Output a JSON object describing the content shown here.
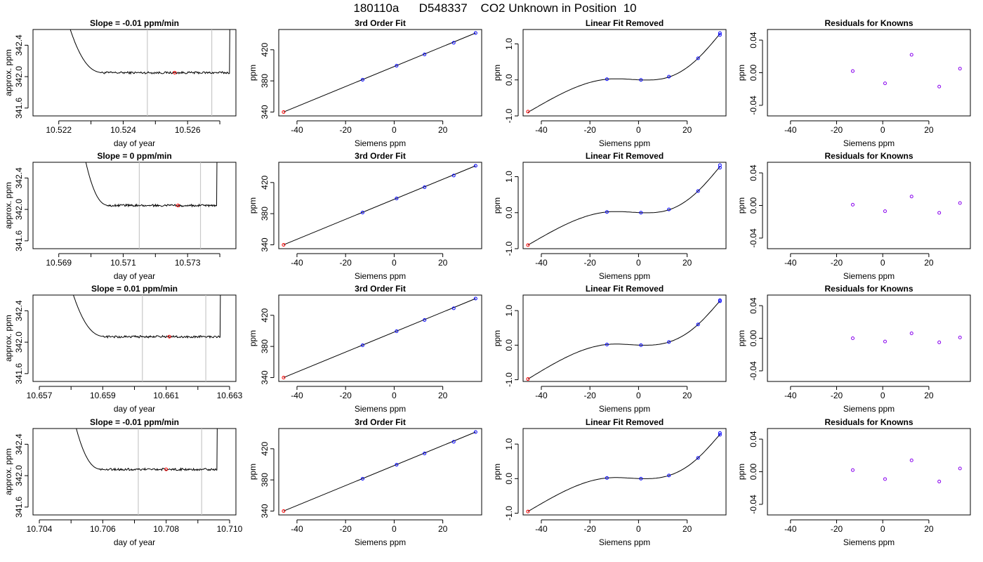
{
  "figure_title": "180110a      D548337    CO2 Unknown in Position  10",
  "colors": {
    "known_points": "#0000ff",
    "unknown_points": "#ff0000",
    "residual_points": "#8800ee",
    "vertical_lines": "#c8c8c8",
    "curve": "#000000"
  },
  "chart_data": [
    {
      "type": "line",
      "panel": "trace",
      "row": 1,
      "title": "Slope =  -0.01  ppm/min",
      "xlabel": "day of year",
      "ylabel": "approx. ppm",
      "xlim": [
        10.5212,
        10.5275
      ],
      "ylim": [
        341.5,
        342.6
      ],
      "xticks": [
        "10.522",
        "10.524",
        "10.526"
      ],
      "xtick_values": [
        10.522,
        10.524,
        10.526
      ],
      "minor_xticks": [
        10.523,
        10.525,
        10.527
      ],
      "yticks": [
        "341.6",
        "342.0",
        "342.4"
      ],
      "ytick_values": [
        341.6,
        342.0,
        342.4
      ],
      "x_start": 10.5223,
      "x_flat": 10.5233,
      "x_end": 10.5273,
      "flat_level": 342.05,
      "vlines": [
        10.52475,
        10.52675
      ],
      "marker": {
        "x": 10.5256,
        "y": 342.05
      }
    },
    {
      "type": "scatter",
      "panel": "fit",
      "row": 1,
      "title": "3rd Order Fit",
      "xlabel": "Siemens ppm",
      "ylabel": "ppm",
      "xlim": [
        -47.5,
        36
      ],
      "ylim": [
        335,
        446
      ],
      "xticks": [
        "-40",
        "-20",
        "0",
        "20"
      ],
      "xtick_values": [
        -40,
        -20,
        0,
        20
      ],
      "yticks": [
        "340",
        "380",
        "420"
      ],
      "ytick_values": [
        340,
        380,
        420
      ],
      "known": {
        "x": [
          -13,
          1,
          12.5,
          24.5,
          33.5
        ],
        "y": [
          381.5,
          399.5,
          414,
          429,
          441.5
        ]
      },
      "unknown": {
        "x": [
          -45.5
        ],
        "y": [
          340
        ]
      },
      "line": {
        "x": [
          -45.5,
          33.5
        ],
        "y": [
          340,
          441.5
        ]
      }
    },
    {
      "type": "line",
      "panel": "linear_removed",
      "row": 1,
      "title": "Linear Fit Removed",
      "xlabel": "Siemens ppm",
      "ylabel": "ppm",
      "xlim": [
        -47.5,
        36
      ],
      "ylim": [
        -1.0,
        1.4
      ],
      "xticks": [
        "-40",
        "-20",
        "0",
        "20"
      ],
      "xtick_values": [
        -40,
        -20,
        0,
        20
      ],
      "yticks": [
        "-1.0",
        "0.0",
        "1.0"
      ],
      "ytick_values": [
        -1.0,
        0.0,
        1.0
      ],
      "curve": {
        "x": [
          -45.5,
          -13,
          1,
          12.5,
          24.5,
          33.5
        ],
        "y": [
          -0.9,
          0.02,
          0.0,
          0.08,
          0.6,
          1.28
        ]
      },
      "known": {
        "x": [
          -13,
          1,
          12.5,
          24.5,
          33.5,
          33.5
        ],
        "y": [
          0.02,
          0.0,
          0.09,
          0.6,
          1.25,
          1.3
        ]
      },
      "unknown": {
        "x": [
          -45.5
        ],
        "y": [
          -0.88
        ]
      }
    },
    {
      "type": "scatter",
      "panel": "residuals",
      "row": 1,
      "title": "Residuals for Knowns",
      "xlabel": "Siemens ppm",
      "ylabel": "ppm",
      "xlim": [
        -50,
        38
      ],
      "ylim": [
        -0.053,
        0.053
      ],
      "xticks": [
        "-40",
        "-20",
        "0",
        "20"
      ],
      "xtick_values": [
        -40,
        -20,
        0,
        20
      ],
      "yticks": [
        "-0.04",
        "0.00",
        "0.04"
      ],
      "ytick_values": [
        -0.04,
        0.0,
        0.04
      ],
      "x": [
        -13,
        1,
        12.5,
        24.5,
        33.5
      ],
      "y": [
        0.002,
        -0.013,
        0.022,
        -0.017,
        0.005
      ]
    },
    {
      "type": "line",
      "panel": "trace",
      "row": 2,
      "title": "Slope =  0  ppm/min",
      "xlabel": "day of year",
      "ylabel": "approx. ppm",
      "xlim": [
        10.5682,
        10.5745
      ],
      "ylim": [
        341.5,
        342.6
      ],
      "xticks": [
        "10.569",
        "10.571",
        "10.573"
      ],
      "xtick_values": [
        10.569,
        10.571,
        10.573
      ],
      "minor_xticks": [
        10.57,
        10.572,
        10.574
      ],
      "yticks": [
        "341.6",
        "342.0",
        "342.4"
      ],
      "ytick_values": [
        341.6,
        342.0,
        342.4
      ],
      "x_start": 10.5698,
      "x_flat": 10.5705,
      "x_end": 10.5739,
      "flat_level": 342.05,
      "vlines": [
        10.5715,
        10.5734
      ],
      "marker": {
        "x": 10.5727,
        "y": 342.05
      }
    },
    {
      "type": "scatter",
      "panel": "fit",
      "row": 2,
      "title": "3rd Order Fit",
      "xlabel": "Siemens ppm",
      "ylabel": "ppm",
      "xlim": [
        -47.5,
        36
      ],
      "ylim": [
        335,
        446
      ],
      "xticks": [
        "-40",
        "-20",
        "0",
        "20"
      ],
      "xtick_values": [
        -40,
        -20,
        0,
        20
      ],
      "yticks": [
        "340",
        "380",
        "420"
      ],
      "ytick_values": [
        340,
        380,
        420
      ],
      "known": {
        "x": [
          -13,
          1,
          12.5,
          24.5,
          33.5
        ],
        "y": [
          381.5,
          399.5,
          414,
          429,
          441.5
        ]
      },
      "unknown": {
        "x": [
          -45.5
        ],
        "y": [
          340
        ]
      },
      "line": {
        "x": [
          -45.5,
          33.5
        ],
        "y": [
          340,
          441.5
        ]
      }
    },
    {
      "type": "line",
      "panel": "linear_removed",
      "row": 2,
      "title": "Linear Fit Removed",
      "xlabel": "Siemens ppm",
      "ylabel": "ppm",
      "xlim": [
        -47.5,
        36
      ],
      "ylim": [
        -1.0,
        1.4
      ],
      "xticks": [
        "-40",
        "-20",
        "0",
        "20"
      ],
      "xtick_values": [
        -40,
        -20,
        0,
        20
      ],
      "yticks": [
        "-1.0",
        "0.0",
        "1.0"
      ],
      "ytick_values": [
        -1.0,
        0.0,
        1.0
      ],
      "curve": {
        "x": [
          -45.5,
          -13,
          1,
          12.5,
          24.5,
          33.5
        ],
        "y": [
          -0.9,
          0.02,
          0.0,
          0.08,
          0.6,
          1.28
        ]
      },
      "known": {
        "x": [
          -13,
          1,
          12.5,
          24.5,
          33.5,
          33.5
        ],
        "y": [
          0.02,
          0.0,
          0.09,
          0.6,
          1.25,
          1.32
        ]
      },
      "unknown": {
        "x": [
          -45.5
        ],
        "y": [
          -0.9
        ]
      }
    },
    {
      "type": "scatter",
      "panel": "residuals",
      "row": 2,
      "title": "Residuals for Knowns",
      "xlabel": "Siemens ppm",
      "ylabel": "ppm",
      "xlim": [
        -50,
        38
      ],
      "ylim": [
        -0.053,
        0.053
      ],
      "xticks": [
        "-40",
        "-20",
        "0",
        "20"
      ],
      "xtick_values": [
        -40,
        -20,
        0,
        20
      ],
      "yticks": [
        "-0.04",
        "0.00",
        "0.04"
      ],
      "ytick_values": [
        -0.04,
        0.0,
        0.04
      ],
      "x": [
        -13,
        1,
        12.5,
        24.5,
        33.5
      ],
      "y": [
        0.001,
        -0.007,
        0.011,
        -0.009,
        0.003
      ]
    },
    {
      "type": "line",
      "panel": "trace",
      "row": 3,
      "title": "Slope =  0.01  ppm/min",
      "xlabel": "day of year",
      "ylabel": "approx. ppm",
      "xlim": [
        10.6568,
        10.6632
      ],
      "ylim": [
        341.5,
        342.6
      ],
      "xticks": [
        "10.657",
        "10.659",
        "10.661",
        "10.663"
      ],
      "xtick_values": [
        10.657,
        10.659,
        10.661,
        10.663
      ],
      "minor_xticks": [
        10.658,
        10.66,
        10.662
      ],
      "yticks": [
        "341.6",
        "342.0",
        "342.4"
      ],
      "ytick_values": [
        341.6,
        342.0,
        342.4
      ],
      "x_start": 10.658,
      "x_flat": 10.659,
      "x_end": 10.6627,
      "flat_level": 342.07,
      "vlines": [
        10.66025,
        10.66225
      ],
      "marker": {
        "x": 10.6611,
        "y": 342.07
      }
    },
    {
      "type": "scatter",
      "panel": "fit",
      "row": 3,
      "title": "3rd Order Fit",
      "xlabel": "Siemens ppm",
      "ylabel": "ppm",
      "xlim": [
        -47.5,
        36
      ],
      "ylim": [
        335,
        446
      ],
      "xticks": [
        "-40",
        "-20",
        "0",
        "20"
      ],
      "xtick_values": [
        -40,
        -20,
        0,
        20
      ],
      "yticks": [
        "340",
        "380",
        "420"
      ],
      "ytick_values": [
        340,
        380,
        420
      ],
      "known": {
        "x": [
          -13,
          1,
          12.5,
          24.5,
          33.5
        ],
        "y": [
          381.5,
          399.5,
          414,
          429,
          441.5
        ]
      },
      "unknown": {
        "x": [
          -45.5
        ],
        "y": [
          340
        ]
      },
      "line": {
        "x": [
          -45.5,
          33.5
        ],
        "y": [
          340,
          441.5
        ]
      }
    },
    {
      "type": "line",
      "panel": "linear_removed",
      "row": 3,
      "title": "Linear Fit Removed",
      "xlabel": "Siemens ppm",
      "ylabel": "ppm",
      "xlim": [
        -47.5,
        36
      ],
      "ylim": [
        -1.05,
        1.45
      ],
      "xticks": [
        "-40",
        "-20",
        "0",
        "20"
      ],
      "xtick_values": [
        -40,
        -20,
        0,
        20
      ],
      "yticks": [
        "-1.0",
        "0.0",
        "1.0"
      ],
      "ytick_values": [
        -1.0,
        0.0,
        1.0
      ],
      "curve": {
        "x": [
          -45.5,
          -13,
          1,
          12.5,
          24.5,
          33.5
        ],
        "y": [
          -0.98,
          0.02,
          0.0,
          0.09,
          0.6,
          1.28
        ]
      },
      "known": {
        "x": [
          -13,
          1,
          12.5,
          24.5,
          33.5,
          33.5
        ],
        "y": [
          0.02,
          0.0,
          0.09,
          0.6,
          1.27,
          1.3
        ]
      },
      "unknown": {
        "x": [
          -45.5
        ],
        "y": [
          -0.98
        ]
      }
    },
    {
      "type": "scatter",
      "panel": "residuals",
      "row": 3,
      "title": "Residuals for Knowns",
      "xlabel": "Siemens ppm",
      "ylabel": "ppm",
      "xlim": [
        -50,
        38
      ],
      "ylim": [
        -0.053,
        0.053
      ],
      "xticks": [
        "-40",
        "-20",
        "0",
        "20"
      ],
      "xtick_values": [
        -40,
        -20,
        0,
        20
      ],
      "yticks": [
        "-0.04",
        "0.00",
        "0.04"
      ],
      "ytick_values": [
        -0.04,
        0.0,
        0.04
      ],
      "x": [
        -13,
        1,
        12.5,
        24.5,
        33.5
      ],
      "y": [
        0.0,
        -0.004,
        0.006,
        -0.005,
        0.001
      ]
    },
    {
      "type": "line",
      "panel": "trace",
      "row": 4,
      "title": "Slope =  -0.01  ppm/min",
      "xlabel": "day of year",
      "ylabel": "approx. ppm",
      "xlim": [
        10.7038,
        10.7102
      ],
      "ylim": [
        341.5,
        342.6
      ],
      "xticks": [
        "10.704",
        "10.706",
        "10.708",
        "10.710"
      ],
      "xtick_values": [
        10.704,
        10.706,
        10.708,
        10.71
      ],
      "minor_xticks": [
        10.705,
        10.707,
        10.709
      ],
      "yticks": [
        "341.6",
        "342.0",
        "342.4"
      ],
      "ytick_values": [
        341.6,
        342.0,
        342.4
      ],
      "x_start": 10.7051,
      "x_flat": 10.7059,
      "x_end": 10.7096,
      "flat_level": 342.08,
      "vlines": [
        10.70712,
        10.70912
      ],
      "marker": {
        "x": 10.708,
        "y": 342.08
      }
    },
    {
      "type": "scatter",
      "panel": "fit",
      "row": 4,
      "title": "3rd Order Fit",
      "xlabel": "Siemens ppm",
      "ylabel": "ppm",
      "xlim": [
        -47.5,
        36
      ],
      "ylim": [
        335,
        446
      ],
      "xticks": [
        "-40",
        "-20",
        "0",
        "20"
      ],
      "xtick_values": [
        -40,
        -20,
        0,
        20
      ],
      "yticks": [
        "340",
        "380",
        "420"
      ],
      "ytick_values": [
        340,
        380,
        420
      ],
      "known": {
        "x": [
          -13,
          1,
          12.5,
          24.5,
          33.5
        ],
        "y": [
          381.5,
          399.5,
          414,
          429,
          441.5
        ]
      },
      "unknown": {
        "x": [
          -45.5
        ],
        "y": [
          340
        ]
      },
      "line": {
        "x": [
          -45.5,
          33.5
        ],
        "y": [
          340,
          441.5
        ]
      }
    },
    {
      "type": "line",
      "panel": "linear_removed",
      "row": 4,
      "title": "Linear Fit Removed",
      "xlabel": "Siemens ppm",
      "ylabel": "ppm",
      "xlim": [
        -47.5,
        36
      ],
      "ylim": [
        -1.05,
        1.45
      ],
      "xticks": [
        "-40",
        "-20",
        "0",
        "20"
      ],
      "xtick_values": [
        -40,
        -20,
        0,
        20
      ],
      "yticks": [
        "-1.0",
        "0.0",
        "1.0"
      ],
      "ytick_values": [
        -1.0,
        0.0,
        1.0
      ],
      "curve": {
        "x": [
          -45.5,
          -13,
          1,
          12.5,
          24.5,
          33.5
        ],
        "y": [
          -0.95,
          0.02,
          0.0,
          0.09,
          0.6,
          1.28
        ]
      },
      "known": {
        "x": [
          -13,
          1,
          12.5,
          24.5,
          33.5,
          33.5
        ],
        "y": [
          0.02,
          0.0,
          0.09,
          0.6,
          1.27,
          1.32
        ]
      },
      "unknown": {
        "x": [
          -45.5
        ],
        "y": [
          -0.95
        ]
      }
    },
    {
      "type": "scatter",
      "panel": "residuals",
      "row": 4,
      "title": "Residuals for Knowns",
      "xlabel": "Siemens ppm",
      "ylabel": "ppm",
      "xlim": [
        -50,
        38
      ],
      "ylim": [
        -0.053,
        0.053
      ],
      "xticks": [
        "-40",
        "-20",
        "0",
        "20"
      ],
      "xtick_values": [
        -40,
        -20,
        0,
        20
      ],
      "yticks": [
        "-0.04",
        "0.00",
        "0.04"
      ],
      "ytick_values": [
        -0.04,
        0.0,
        0.04
      ],
      "x": [
        -13,
        1,
        12.5,
        24.5,
        33.5
      ],
      "y": [
        0.002,
        -0.009,
        0.014,
        -0.012,
        0.004
      ]
    }
  ]
}
